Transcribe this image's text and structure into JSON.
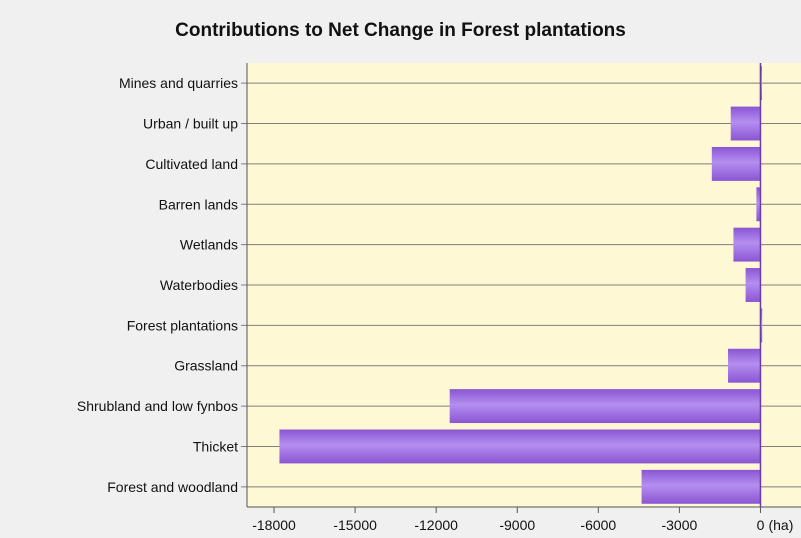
{
  "chart_data": {
    "type": "bar",
    "orientation": "horizontal",
    "title": "Contributions to Net Change in Forest plantations",
    "xlabel": "",
    "ylabel": "",
    "unit_label": "(ha)",
    "categories": [
      "Mines and quarries",
      "Urban / built up",
      "Cultivated land",
      "Barren lands",
      "Wetlands",
      "Waterbodies",
      "Forest plantations",
      "Grassland",
      "Shrubland and low fynbos",
      "Thicket",
      "Forest and woodland"
    ],
    "values": [
      -20,
      -1100,
      -1800,
      -150,
      -1000,
      -550,
      -10,
      -1200,
      -11500,
      -17800,
      -4400
    ],
    "xlim": [
      -19000,
      1500
    ],
    "ticks": [
      -18000,
      -15000,
      -12000,
      -9000,
      -6000,
      -3000,
      0
    ],
    "tick_labels": [
      "-18000",
      "-15000",
      "-12000",
      "-9000",
      "-6000",
      "-3000",
      "0"
    ],
    "grid": true,
    "legend": "none",
    "colors": {
      "bar_light": "#b48ef0",
      "bar_dark": "#8a55d2",
      "plot_bg": "#fff8d4",
      "grid": "#7f7f7f",
      "axis": "#555555"
    }
  }
}
